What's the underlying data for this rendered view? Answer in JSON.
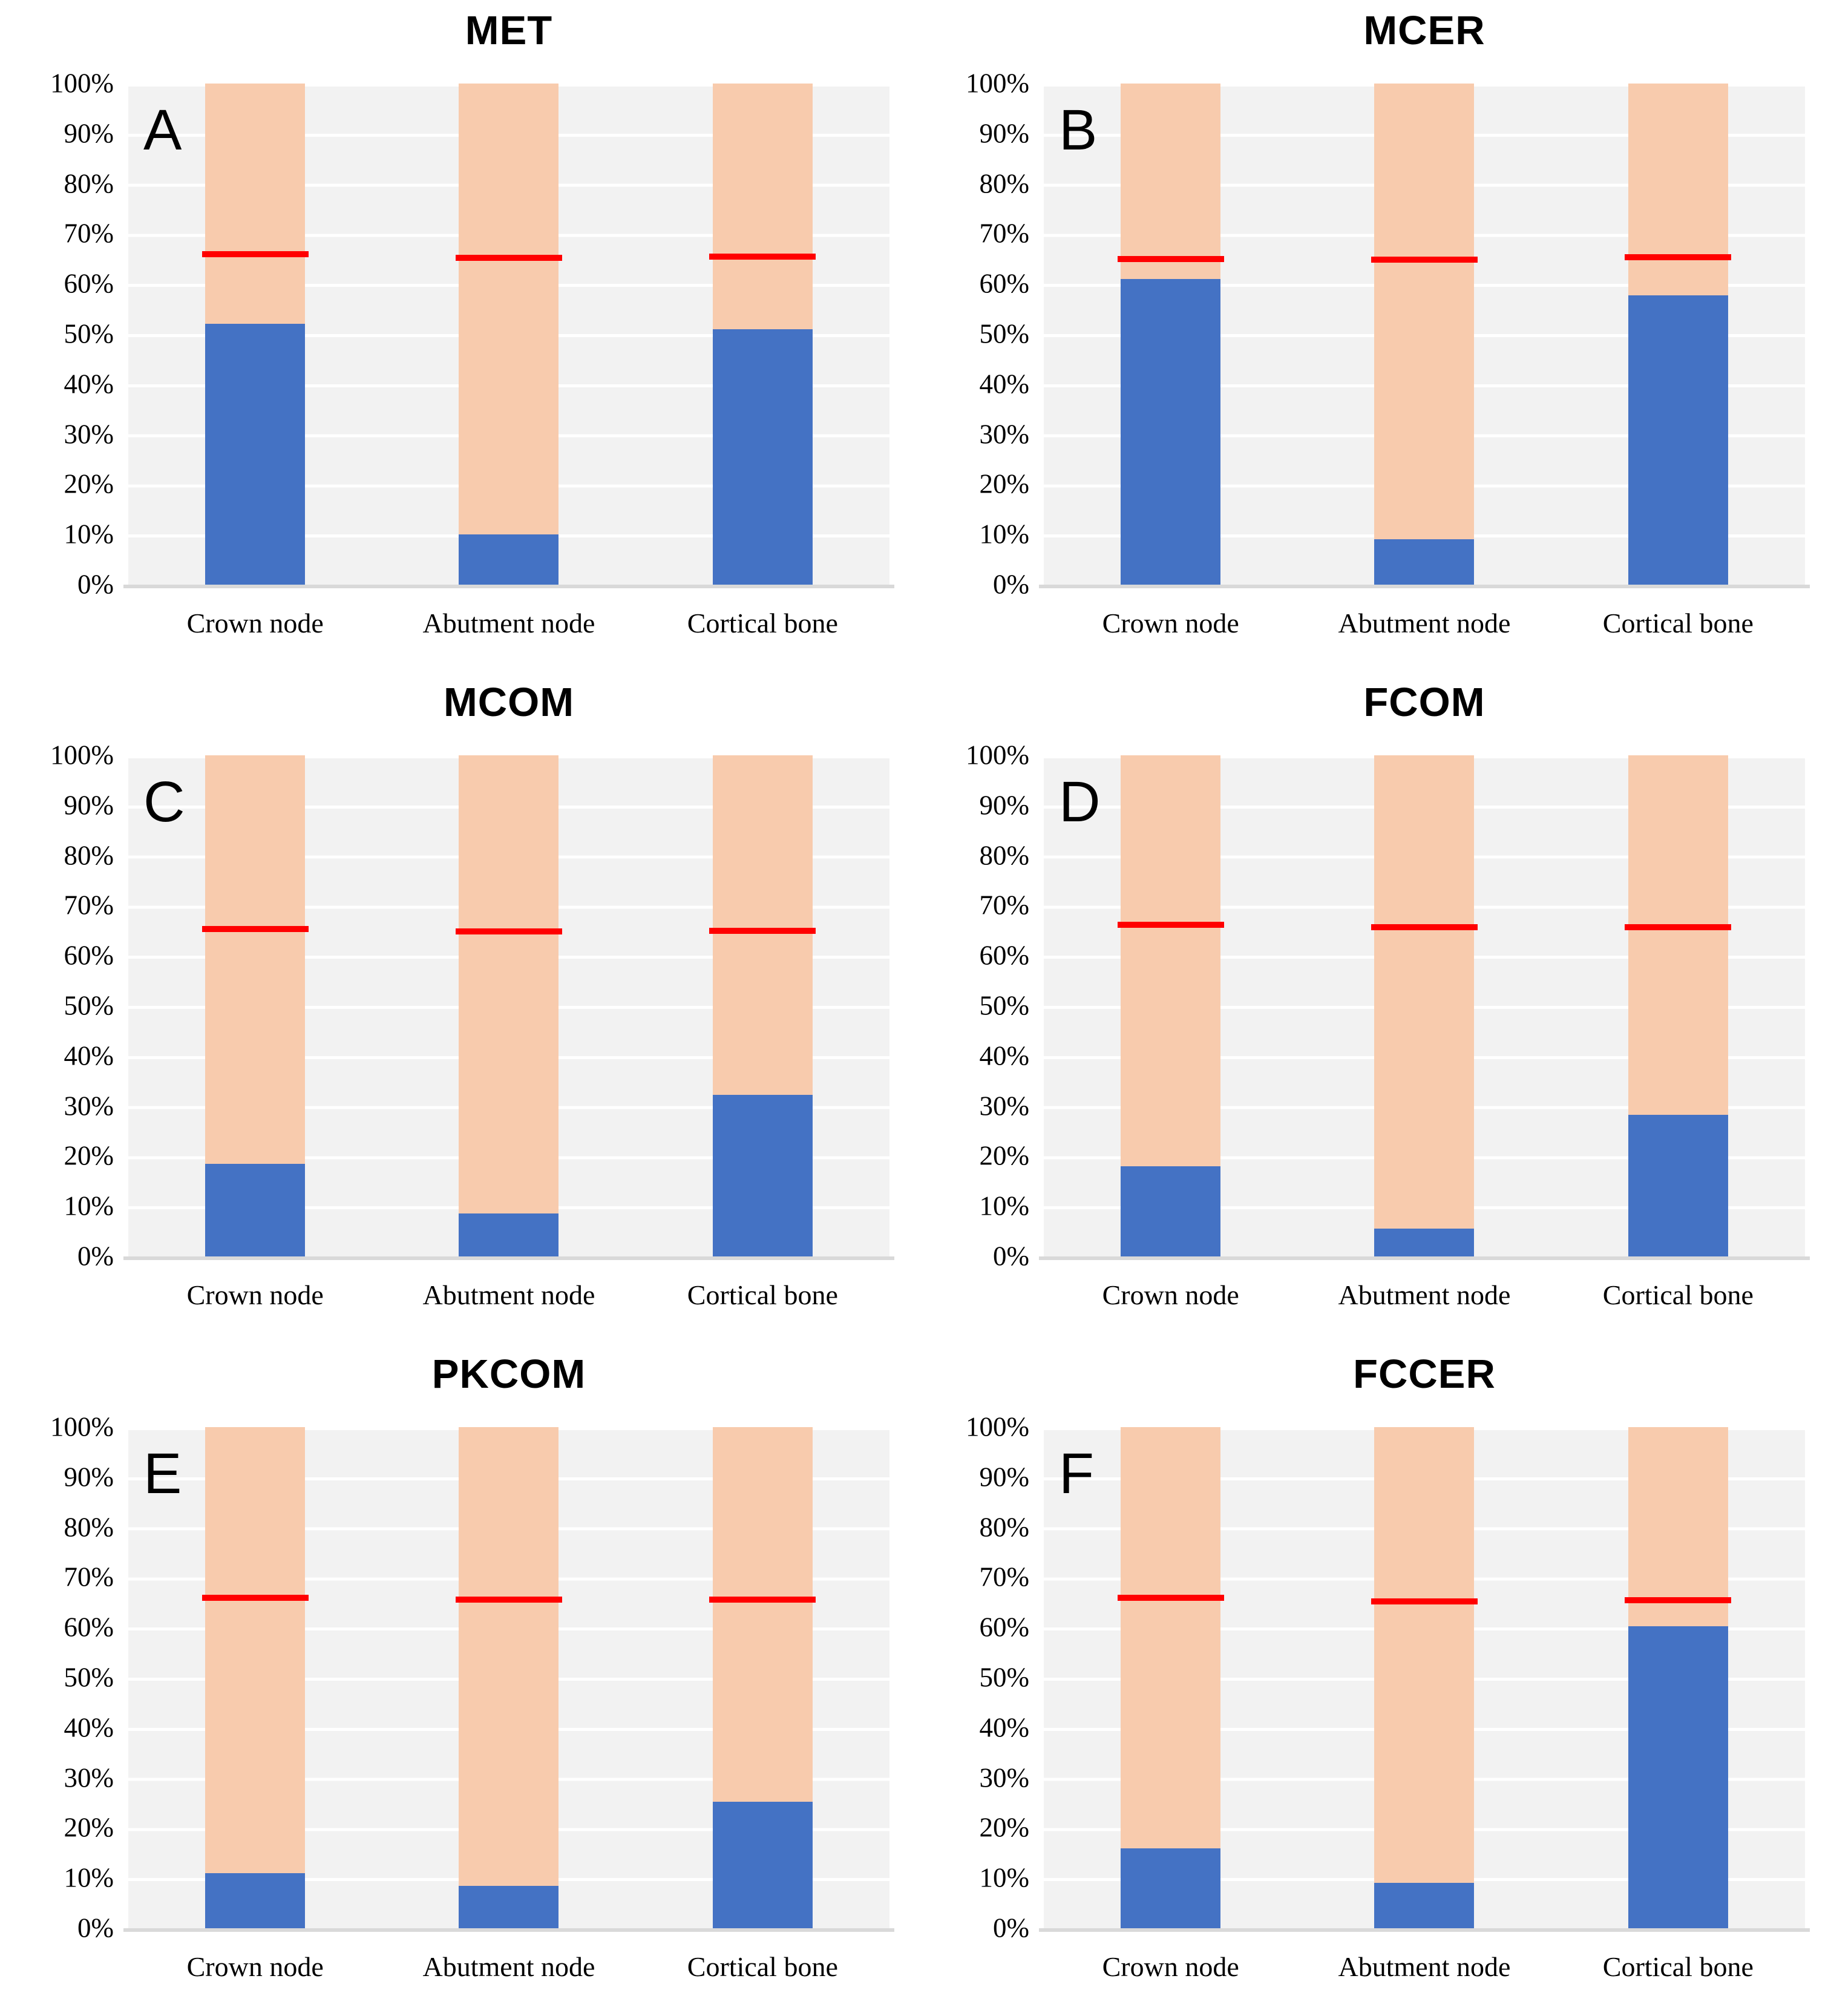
{
  "figure": {
    "description_colors": {
      "blue_segment": "#4472C4",
      "peach_segment": "#F8CBAD",
      "marker_line": "#FF0000",
      "plot_background": "#F2F2F2",
      "gridline": "#FFFFFF",
      "axis_line": "#D9D9D9",
      "text": "#000000"
    },
    "y_tick_labels": [
      "100%",
      "90%",
      "80%",
      "70%",
      "60%",
      "50%",
      "40%",
      "30%",
      "20%",
      "10%",
      "0%"
    ]
  },
  "chart_data": [
    {
      "type": "bar",
      "subtype": "stacked-100-percent",
      "panel_letter": "A",
      "title": "MET",
      "categories": [
        "Crown node",
        "Abutment node",
        "Cortical bone"
      ],
      "series": [
        {
          "name": "blue-lower-segment",
          "color": "#4472C4",
          "values": [
            52,
            10,
            51
          ]
        },
        {
          "name": "peach-upper-segment",
          "color": "#F8CBAD",
          "values": [
            48,
            90,
            49
          ]
        }
      ],
      "marker_line": {
        "color": "#FF0000",
        "values": [
          66,
          65.2,
          65.5
        ]
      },
      "ylim": [
        0,
        100
      ],
      "ytick_format": "percent",
      "grid": true,
      "legend": false
    },
    {
      "type": "bar",
      "subtype": "stacked-100-percent",
      "panel_letter": "B",
      "title": "MCER",
      "categories": [
        "Crown node",
        "Abutment node",
        "Cortical bone"
      ],
      "series": [
        {
          "name": "blue-lower-segment",
          "color": "#4472C4",
          "values": [
            61,
            9,
            57.7
          ]
        },
        {
          "name": "peach-upper-segment",
          "color": "#F8CBAD",
          "values": [
            39,
            91,
            42.3
          ]
        }
      ],
      "marker_line": {
        "color": "#FF0000",
        "values": [
          65,
          64.9,
          65.4
        ]
      },
      "ylim": [
        0,
        100
      ],
      "ytick_format": "percent",
      "grid": true,
      "legend": false
    },
    {
      "type": "bar",
      "subtype": "stacked-100-percent",
      "panel_letter": "C",
      "title": "MCOM",
      "categories": [
        "Crown node",
        "Abutment node",
        "Cortical bone"
      ],
      "series": [
        {
          "name": "blue-lower-segment",
          "color": "#4472C4",
          "values": [
            18.5,
            8.6,
            32.3
          ]
        },
        {
          "name": "peach-upper-segment",
          "color": "#F8CBAD",
          "values": [
            81.5,
            91.4,
            67.7
          ]
        }
      ],
      "marker_line": {
        "color": "#FF0000",
        "values": [
          65.4,
          64.8,
          65
        ]
      },
      "ylim": [
        0,
        100
      ],
      "ytick_format": "percent",
      "grid": true,
      "legend": false
    },
    {
      "type": "bar",
      "subtype": "stacked-100-percent",
      "panel_letter": "D",
      "title": "FCOM",
      "categories": [
        "Crown node",
        "Abutment node",
        "Cortical bone"
      ],
      "series": [
        {
          "name": "blue-lower-segment",
          "color": "#4472C4",
          "values": [
            18,
            5.6,
            28.3
          ]
        },
        {
          "name": "peach-upper-segment",
          "color": "#F8CBAD",
          "values": [
            82,
            94.4,
            71.7
          ]
        }
      ],
      "marker_line": {
        "color": "#FF0000",
        "values": [
          66.2,
          65.7,
          65.7
        ]
      },
      "ylim": [
        0,
        100
      ],
      "ytick_format": "percent",
      "grid": true,
      "legend": false
    },
    {
      "type": "bar",
      "subtype": "stacked-100-percent",
      "panel_letter": "E",
      "title": "PKCOM",
      "categories": [
        "Crown node",
        "Abutment node",
        "Cortical bone"
      ],
      "series": [
        {
          "name": "blue-lower-segment",
          "color": "#4472C4",
          "values": [
            11,
            8.4,
            25.3
          ]
        },
        {
          "name": "peach-upper-segment",
          "color": "#F8CBAD",
          "values": [
            89,
            91.6,
            74.7
          ]
        }
      ],
      "marker_line": {
        "color": "#FF0000",
        "values": [
          66,
          65.6,
          65.6
        ]
      },
      "ylim": [
        0,
        100
      ],
      "ytick_format": "percent",
      "grid": true,
      "legend": false
    },
    {
      "type": "bar",
      "subtype": "stacked-100-percent",
      "panel_letter": "F",
      "title": "FCCER",
      "categories": [
        "Crown node",
        "Abutment node",
        "Cortical bone"
      ],
      "series": [
        {
          "name": "blue-lower-segment",
          "color": "#4472C4",
          "values": [
            16,
            9,
            60.3
          ]
        },
        {
          "name": "peach-upper-segment",
          "color": "#F8CBAD",
          "values": [
            84,
            91,
            39.7
          ]
        }
      ],
      "marker_line": {
        "color": "#FF0000",
        "values": [
          66,
          65.2,
          65.5
        ]
      },
      "ylim": [
        0,
        100
      ],
      "ytick_format": "percent",
      "grid": true,
      "legend": false
    }
  ]
}
